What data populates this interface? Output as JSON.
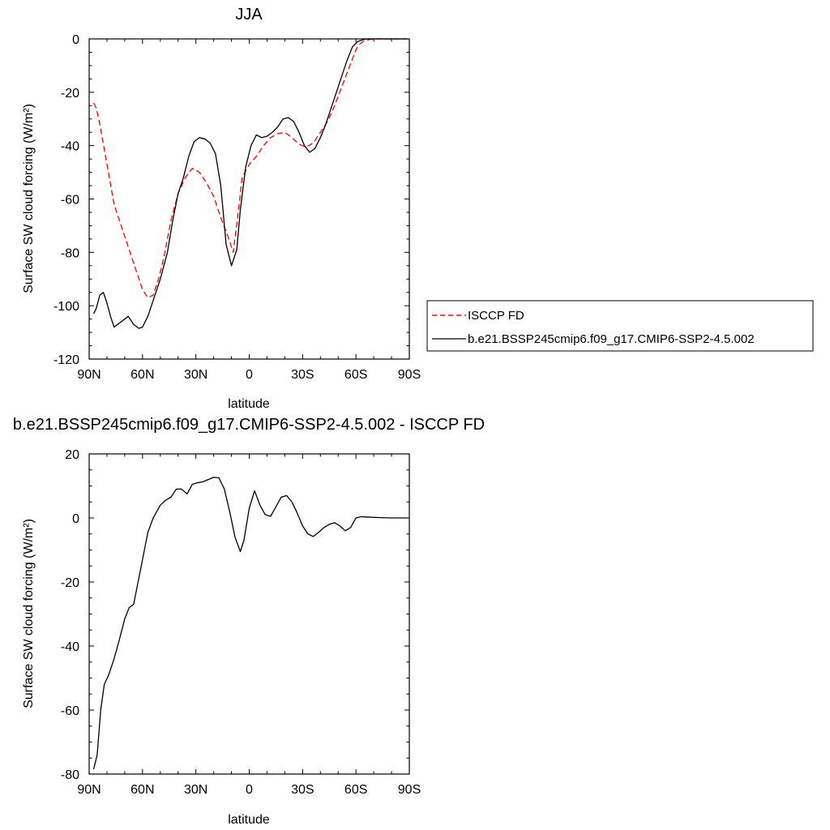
{
  "chart_data": [
    {
      "type": "line",
      "title": "JJA",
      "xlabel": "latitude",
      "ylabel": "Surface SW cloud forcing (W/m²)",
      "xlim": [
        90,
        -90
      ],
      "ylim": [
        -120,
        0
      ],
      "xticks": [
        {
          "v": 90,
          "label": "90N"
        },
        {
          "v": 60,
          "label": "60N"
        },
        {
          "v": 30,
          "label": "30N"
        },
        {
          "v": 0,
          "label": "0"
        },
        {
          "v": -30,
          "label": "30S"
        },
        {
          "v": -60,
          "label": "60S"
        },
        {
          "v": -90,
          "label": "90S"
        }
      ],
      "yticks": [
        0,
        -20,
        -40,
        -60,
        -80,
        -100,
        -120
      ],
      "legend": {
        "placement": "right"
      },
      "series": [
        {
          "name": "ISCCP FD",
          "color": "#ff0000",
          "dash": "dashed",
          "x": [
            87.5,
            86,
            84,
            80,
            76,
            72,
            68,
            64,
            60,
            57,
            54,
            51,
            48,
            44,
            40,
            36,
            32,
            28,
            24,
            20,
            16,
            12,
            9,
            6,
            4,
            0,
            -4,
            -8,
            -12,
            -16,
            -20,
            -24,
            -28,
            -32,
            -36,
            -40,
            -44,
            -48,
            -52,
            -56,
            -60,
            -62,
            -64,
            -66,
            -68,
            -70,
            -74,
            -80,
            -86,
            -89
          ],
          "values": [
            -24,
            -26,
            -32,
            -47,
            -62,
            -70,
            -78,
            -86,
            -94,
            -97,
            -96,
            -90,
            -82,
            -68,
            -58,
            -52,
            -48.5,
            -50,
            -54,
            -59,
            -67,
            -74,
            -80,
            -64,
            -52,
            -47,
            -44,
            -40,
            -37,
            -35.5,
            -35,
            -37,
            -39.5,
            -40.5,
            -39,
            -35,
            -31,
            -25,
            -18,
            -11,
            -4,
            -2,
            -1,
            -0.5,
            -0.2,
            0,
            0,
            0,
            0,
            0
          ]
        },
        {
          "name": "b.e21.BSSP245cmip6.f09_g17.CMIP6-SSP2-4.5.002",
          "color": "#000000",
          "dash": "solid",
          "x": [
            87.5,
            86,
            84,
            82,
            80,
            78,
            76,
            72,
            68,
            65,
            62,
            60,
            57,
            54,
            50,
            46,
            43,
            40,
            37,
            34,
            31,
            28,
            25,
            22,
            19,
            16,
            13,
            10,
            7,
            5,
            2,
            -1,
            -4,
            -7,
            -10,
            -13,
            -16,
            -19,
            -22,
            -25,
            -28,
            -31,
            -34,
            -37,
            -40,
            -43,
            -46,
            -49,
            -52,
            -55,
            -58,
            -61,
            -64,
            -66,
            -68,
            -70,
            -74,
            -80,
            -86,
            -89
          ],
          "values": [
            -103,
            -101,
            -96,
            -95,
            -99,
            -104,
            -108,
            -106,
            -104,
            -107,
            -108.5,
            -108,
            -104,
            -98,
            -90,
            -80,
            -68,
            -58,
            -52,
            -44,
            -38.5,
            -37,
            -37.5,
            -39,
            -43,
            -55,
            -77,
            -85,
            -79,
            -64,
            -48,
            -40,
            -36,
            -37,
            -36.5,
            -35,
            -33,
            -30,
            -29.5,
            -31,
            -35,
            -40,
            -42.5,
            -41,
            -37,
            -32,
            -26,
            -20,
            -14,
            -8,
            -3,
            -1,
            -0.3,
            0,
            0,
            0,
            0,
            0,
            0,
            0
          ]
        }
      ]
    },
    {
      "type": "line",
      "title": "b.e21.BSSP245cmip6.f09_g17.CMIP6-SSP2-4.5.002 - ISCCP FD",
      "xlabel": "latitude",
      "ylabel": "Surface SW cloud forcing (W/m²)",
      "xlim": [
        90,
        -90
      ],
      "ylim": [
        -80,
        20
      ],
      "xticks": [
        {
          "v": 90,
          "label": "90N"
        },
        {
          "v": 60,
          "label": "60N"
        },
        {
          "v": 30,
          "label": "30N"
        },
        {
          "v": 0,
          "label": "0"
        },
        {
          "v": -30,
          "label": "30S"
        },
        {
          "v": -60,
          "label": "60S"
        },
        {
          "v": -90,
          "label": "90S"
        }
      ],
      "yticks": [
        20,
        0,
        -20,
        -40,
        -60,
        -80
      ],
      "series": [
        {
          "color": "#000000",
          "dash": "solid",
          "x": [
            87.5,
            85.5,
            83.5,
            81.5,
            79,
            76,
            73,
            70,
            67.5,
            65,
            62.5,
            60,
            57,
            54,
            50,
            47,
            44,
            41,
            38,
            35,
            32,
            29,
            26,
            23,
            20,
            17,
            14,
            11,
            8,
            5,
            3,
            0,
            -3,
            -6,
            -9,
            -12,
            -15,
            -18,
            -21,
            -24,
            -27,
            -30,
            -33,
            -36,
            -39,
            -42,
            -45,
            -48,
            -51,
            -54,
            -57,
            -60,
            -63,
            -66,
            -69,
            -74,
            -80,
            -86,
            -89
          ],
          "values": [
            -78.5,
            -74,
            -60,
            -52,
            -49,
            -44,
            -38,
            -31.5,
            -28,
            -27,
            -20,
            -13,
            -4.5,
            0,
            4,
            5.5,
            6.5,
            9,
            9,
            7.5,
            10.5,
            11,
            11.3,
            12,
            12.7,
            12.5,
            9,
            2,
            -6,
            -10.5,
            -7,
            3,
            8.5,
            4,
            1,
            0.5,
            3.5,
            6.5,
            7,
            5,
            1.5,
            -2.5,
            -5,
            -5.8,
            -4.5,
            -3,
            -2,
            -1.5,
            -2.5,
            -4,
            -3,
            0,
            0.4,
            0.3,
            0.2,
            0.1,
            0,
            0,
            0
          ]
        }
      ]
    }
  ]
}
